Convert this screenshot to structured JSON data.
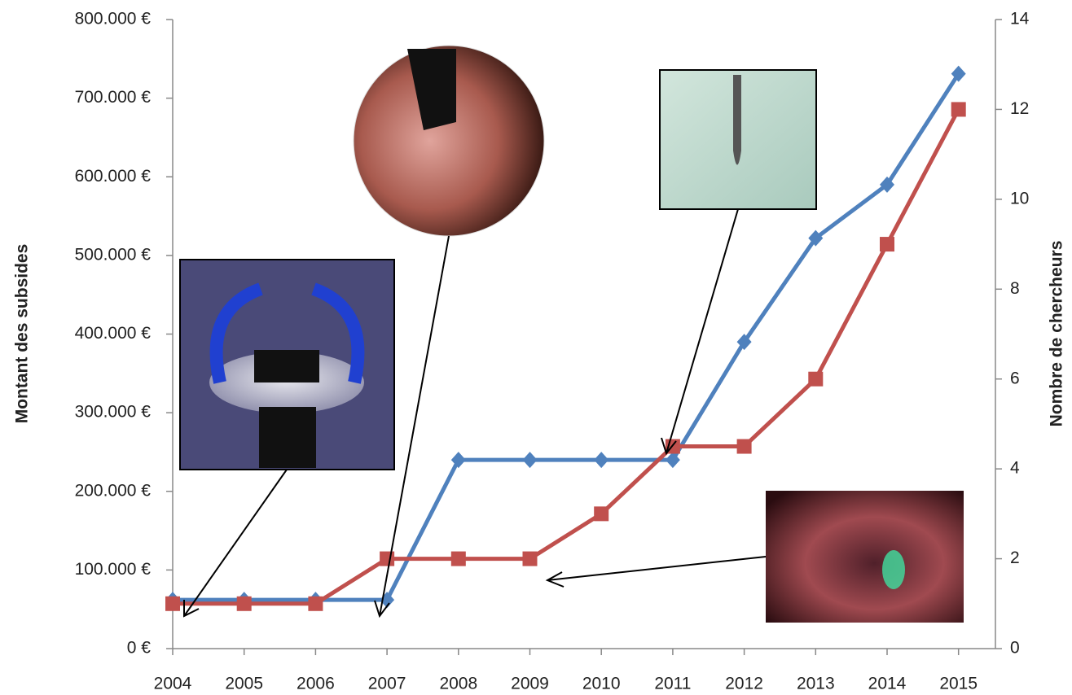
{
  "chart_data": {
    "type": "line",
    "ylabel": "Montant des subsides",
    "y2label": "Nombre de chercheurs",
    "categories": [
      "2004",
      "2005",
      "2006",
      "2007",
      "2008",
      "2009",
      "2010",
      "2011",
      "2012",
      "2013",
      "2014",
      "2015"
    ],
    "series": [
      {
        "color": "#4f81bd",
        "marker": "diamond",
        "values": [
          62000,
          62000,
          62000,
          62000,
          240000,
          240000,
          240000,
          240000,
          390000,
          522000,
          590000,
          731000
        ]
      },
      {
        "color": "#c0504d",
        "marker": "square",
        "axis": "y2",
        "values": [
          1,
          1,
          1,
          2,
          2,
          2,
          3,
          4.5,
          4.5,
          6,
          9,
          12
        ]
      }
    ],
    "ylim": [
      0,
      800000
    ],
    "yticks": [
      {
        "value": 0,
        "label": "0 €"
      },
      {
        "value": 100000,
        "label": "100.000 €"
      },
      {
        "value": 200000,
        "label": "200.000 €"
      },
      {
        "value": 300000,
        "label": "300.000 €"
      },
      {
        "value": 400000,
        "label": "400.000 €"
      },
      {
        "value": 500000,
        "label": "500.000 €"
      },
      {
        "value": 600000,
        "label": "600.000 €"
      },
      {
        "value": 700000,
        "label": "700.000 €"
      },
      {
        "value": 800000,
        "label": "800.000 €"
      }
    ],
    "y2lim": [
      0,
      14
    ],
    "y2ticks": [
      0,
      2,
      4,
      6,
      8,
      10,
      12,
      14
    ],
    "grid": false
  }
}
